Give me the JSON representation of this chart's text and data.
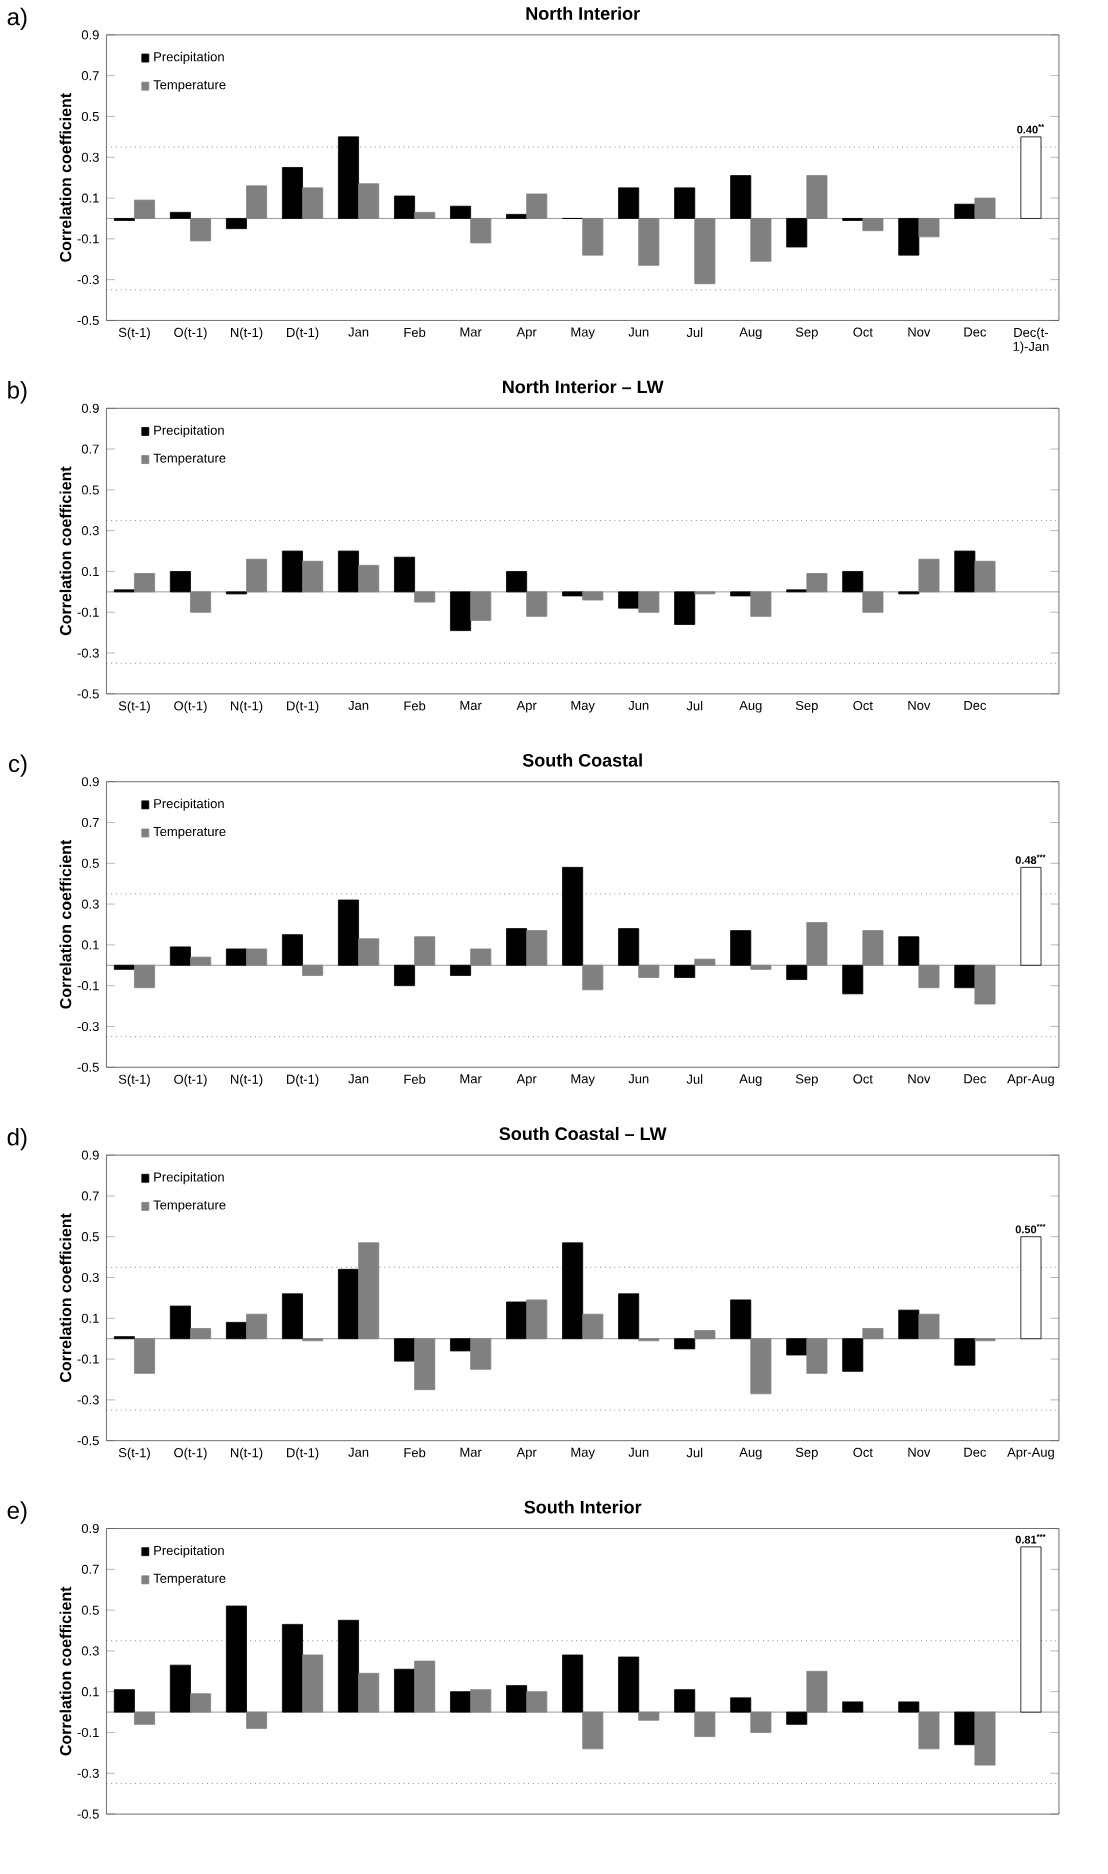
{
  "chart_data": [
    {
      "type": "bar",
      "title": "North Interior",
      "ylabel": "Correlation coefficient",
      "annotations": [
        "a)"
      ],
      "legend": "top left",
      "categories": [
        "S(t-1)",
        "O(t-1)",
        "N(t-1)",
        "D(t-1)",
        "Jan",
        "Feb",
        "Mar",
        "Apr",
        "May",
        "Jun",
        "Jul",
        "Aug",
        "Sep",
        "Oct",
        "Nov",
        "Dec",
        "Dec(t-1)-Jan"
      ],
      "series": [
        {
          "name": "Precipitation",
          "color": "#000000",
          "values": [
            -0.01,
            0.03,
            -0.05,
            0.25,
            0.4,
            0.11,
            0.06,
            0.02,
            0.0,
            0.15,
            0.15,
            0.21,
            -0.14,
            -0.01,
            -0.18,
            0.07,
            null
          ]
        },
        {
          "name": "Temperature",
          "color": "#808080",
          "values": [
            0.09,
            -0.11,
            0.16,
            0.15,
            0.17,
            0.03,
            -0.12,
            0.12,
            -0.18,
            -0.23,
            -0.32,
            -0.21,
            0.21,
            -0.06,
            -0.09,
            0.1,
            null
          ]
        },
        {
          "color": "#ffffff",
          "values": [
            null,
            null,
            null,
            null,
            null,
            null,
            null,
            null,
            null,
            null,
            null,
            null,
            null,
            null,
            null,
            null,
            0.4
          ],
          "value_labels": [
            null,
            null,
            null,
            null,
            null,
            null,
            null,
            null,
            null,
            null,
            null,
            null,
            null,
            null,
            null,
            null,
            "0.40$^{**}$"
          ]
        }
      ],
      "ylim": [
        -0.5,
        0.9
      ],
      "yticks": [
        -0.5,
        -0.3,
        -0.1,
        0.1,
        0.3,
        0.5,
        0.7,
        0.9
      ],
      "ref_lines": [
        {
          "axis": "y",
          "value": 0.35,
          "line_style": "dotted"
        },
        {
          "axis": "y",
          "value": -0.35,
          "line_style": "dotted"
        }
      ]
    },
    {
      "type": "bar",
      "title": "North Interior – LW",
      "ylabel": "Correlation coefficient",
      "annotations": [
        "b)"
      ],
      "legend": "top left",
      "categories": [
        "S(t-1)",
        "O(t-1)",
        "N(t-1)",
        "D(t-1)",
        "Jan",
        "Feb",
        "Mar",
        "Apr",
        "May",
        "Jun",
        "Jul",
        "Aug",
        "Sep",
        "Oct",
        "Nov",
        "Dec",
        null
      ],
      "series": [
        {
          "name": "Precipitation",
          "color": "#000000",
          "values": [
            0.01,
            0.1,
            -0.01,
            0.2,
            0.2,
            0.17,
            -0.19,
            0.1,
            -0.02,
            -0.08,
            -0.16,
            -0.02,
            0.01,
            0.1,
            -0.01,
            0.2,
            null
          ]
        },
        {
          "name": "Temperature",
          "color": "#808080",
          "values": [
            0.09,
            -0.1,
            0.16,
            0.15,
            0.13,
            -0.05,
            -0.14,
            -0.12,
            -0.04,
            -0.1,
            -0.01,
            -0.12,
            0.09,
            -0.1,
            0.16,
            0.15,
            null
          ]
        }
      ],
      "ylim": [
        -0.5,
        0.9
      ],
      "yticks": [
        -0.5,
        -0.3,
        -0.1,
        0.1,
        0.3,
        0.5,
        0.7,
        0.9
      ],
      "ref_lines": [
        {
          "axis": "y",
          "value": 0.35,
          "line_style": "dotted"
        },
        {
          "axis": "y",
          "value": -0.35,
          "line_style": "dotted"
        }
      ]
    },
    {
      "type": "bar",
      "title": "South Coastal",
      "ylabel": "Correlation coefficient",
      "annotations": [
        "c)"
      ],
      "legend": "top left",
      "categories": [
        "S(t-1)",
        "O(t-1)",
        "N(t-1)",
        "D(t-1)",
        "Jan",
        "Feb",
        "Mar",
        "Apr",
        "May",
        "Jun",
        "Jul",
        "Aug",
        "Sep",
        "Oct",
        "Nov",
        "Dec",
        "Apr-Aug"
      ],
      "series": [
        {
          "name": "Precipitation",
          "color": "#000000",
          "values": [
            -0.02,
            0.09,
            0.08,
            0.15,
            0.32,
            -0.1,
            -0.05,
            0.18,
            0.48,
            0.18,
            -0.06,
            0.17,
            -0.07,
            -0.14,
            0.14,
            -0.11,
            null
          ]
        },
        {
          "name": "Temperature",
          "color": "#808080",
          "values": [
            -0.11,
            0.04,
            0.08,
            -0.05,
            0.13,
            0.14,
            0.08,
            0.17,
            -0.12,
            -0.06,
            0.03,
            -0.02,
            0.21,
            0.17,
            -0.11,
            -0.19,
            null
          ]
        },
        {
          "color": "#ffffff",
          "values": [
            null,
            null,
            null,
            null,
            null,
            null,
            null,
            null,
            null,
            null,
            null,
            null,
            null,
            null,
            null,
            null,
            0.48
          ],
          "value_labels": [
            null,
            null,
            null,
            null,
            null,
            null,
            null,
            null,
            null,
            null,
            null,
            null,
            null,
            null,
            null,
            null,
            "0.48$^{***}$"
          ]
        }
      ],
      "ylim": [
        -0.5,
        0.9
      ],
      "yticks": [
        -0.5,
        -0.3,
        -0.1,
        0.1,
        0.3,
        0.5,
        0.7,
        0.9
      ],
      "ref_lines": [
        {
          "axis": "y",
          "value": 0.35,
          "line_style": "dotted"
        },
        {
          "axis": "y",
          "value": -0.35,
          "line_style": "dotted"
        }
      ]
    },
    {
      "type": "bar",
      "title": "South Coastal – LW",
      "ylabel": "Correlation coefficient",
      "annotations": [
        "d)"
      ],
      "legend": "top left",
      "categories": [
        "S(t-1)",
        "O(t-1)",
        "N(t-1)",
        "D(t-1)",
        "Jan",
        "Feb",
        "Mar",
        "Apr",
        "May",
        "Jun",
        "Jul",
        "Aug",
        "Sep",
        "Oct",
        "Nov",
        "Dec",
        "Apr-Aug"
      ],
      "series": [
        {
          "name": "Precipitation",
          "color": "#000000",
          "values": [
            0.01,
            0.16,
            0.08,
            0.22,
            0.34,
            -0.11,
            -0.06,
            0.18,
            0.47,
            0.22,
            -0.05,
            0.19,
            -0.08,
            -0.16,
            0.14,
            -0.13,
            null
          ]
        },
        {
          "name": "Temperature",
          "color": "#808080",
          "values": [
            -0.17,
            0.05,
            0.12,
            -0.01,
            0.47,
            -0.25,
            -0.15,
            0.19,
            0.12,
            -0.01,
            0.04,
            -0.27,
            -0.17,
            0.05,
            0.12,
            -0.01,
            null
          ]
        },
        {
          "color": "#ffffff",
          "values": [
            null,
            null,
            null,
            null,
            null,
            null,
            null,
            null,
            null,
            null,
            null,
            null,
            null,
            null,
            null,
            null,
            0.5
          ],
          "value_labels": [
            null,
            null,
            null,
            null,
            null,
            null,
            null,
            null,
            null,
            null,
            null,
            null,
            null,
            null,
            null,
            null,
            "0.50$^{***}$"
          ]
        }
      ],
      "ylim": [
        -0.5,
        0.9
      ],
      "yticks": [
        -0.5,
        -0.3,
        -0.1,
        0.1,
        0.3,
        0.5,
        0.7,
        0.9
      ],
      "ref_lines": [
        {
          "axis": "y",
          "value": 0.35,
          "line_style": "dotted"
        },
        {
          "axis": "y",
          "value": -0.35,
          "line_style": "dotted"
        }
      ]
    },
    {
      "type": "bar",
      "title": "South Interior",
      "ylabel": "Correlation coefficient",
      "annotations": [
        "e)"
      ],
      "legend": "top left",
      "categories": [
        null,
        null,
        null,
        null,
        null,
        null,
        null,
        null,
        null,
        null,
        null,
        null,
        null,
        null,
        null,
        null,
        null
      ],
      "series": [
        {
          "name": "Precipitation",
          "color": "#000000",
          "values": [
            0.11,
            0.23,
            0.52,
            0.43,
            0.45,
            0.21,
            0.1,
            0.13,
            0.28,
            0.27,
            0.11,
            0.07,
            -0.06,
            0.05,
            0.05,
            -0.16,
            null
          ]
        },
        {
          "name": "Temperature",
          "color": "#808080",
          "values": [
            -0.06,
            0.09,
            -0.08,
            0.28,
            0.19,
            0.25,
            0.11,
            0.1,
            -0.18,
            -0.04,
            -0.12,
            -0.1,
            0.2,
            null,
            -0.18,
            -0.26,
            null
          ]
        },
        {
          "color": "#ffffff",
          "values": [
            null,
            null,
            null,
            null,
            null,
            null,
            null,
            null,
            null,
            null,
            null,
            null,
            null,
            null,
            null,
            null,
            0.81
          ],
          "value_labels": [
            null,
            null,
            null,
            null,
            null,
            null,
            null,
            null,
            null,
            null,
            null,
            null,
            null,
            null,
            null,
            null,
            "0.81$^{***}$"
          ]
        }
      ],
      "ylim": [
        -0.5,
        0.9
      ],
      "yticks": [
        -0.5,
        -0.3,
        -0.1,
        0.1,
        0.3,
        0.5,
        0.7,
        0.9
      ],
      "ref_lines": [
        {
          "axis": "y",
          "value": 0.35,
          "line_style": "dotted"
        },
        {
          "axis": "y",
          "value": -0.35,
          "line_style": "dotted"
        }
      ]
    }
  ]
}
